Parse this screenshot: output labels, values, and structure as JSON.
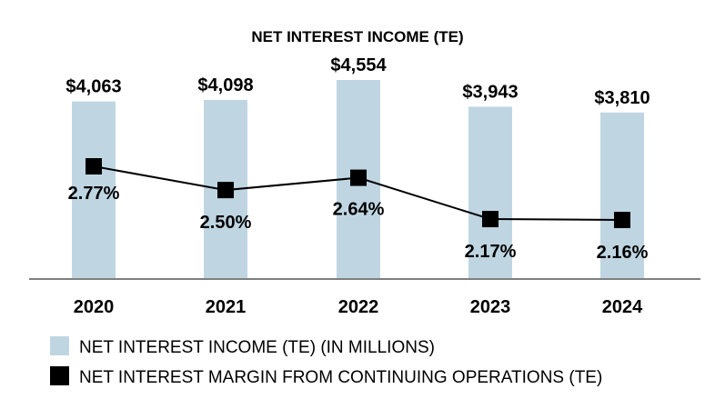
{
  "chart_data": {
    "type": "bar",
    "title": "NET INTEREST INCOME (TE)",
    "categories": [
      "2020",
      "2021",
      "2022",
      "2023",
      "2024"
    ],
    "series": [
      {
        "name": "NET INTEREST INCOME (TE) (IN MILLIONS)",
        "kind": "bar",
        "values": [
          4063,
          4098,
          4554,
          3943,
          3810
        ],
        "labels": [
          "$4,063",
          "$4,098",
          "$4,554",
          "$3,943",
          "$3,810"
        ],
        "color": "#bfd6e2"
      },
      {
        "name": "NET INTEREST MARGIN FROM CONTINUING OPERATIONS (TE)",
        "kind": "line",
        "values": [
          2.77,
          2.5,
          2.64,
          2.17,
          2.16
        ],
        "labels": [
          "2.77%",
          "2.50%",
          "2.64%",
          "2.17%",
          "2.16%"
        ],
        "color": "#000000"
      }
    ],
    "ylim_bar": [
      0,
      4554
    ],
    "ylim_line": [
      1.66,
      3.1
    ],
    "grid": false,
    "legend": "bottom-left"
  }
}
